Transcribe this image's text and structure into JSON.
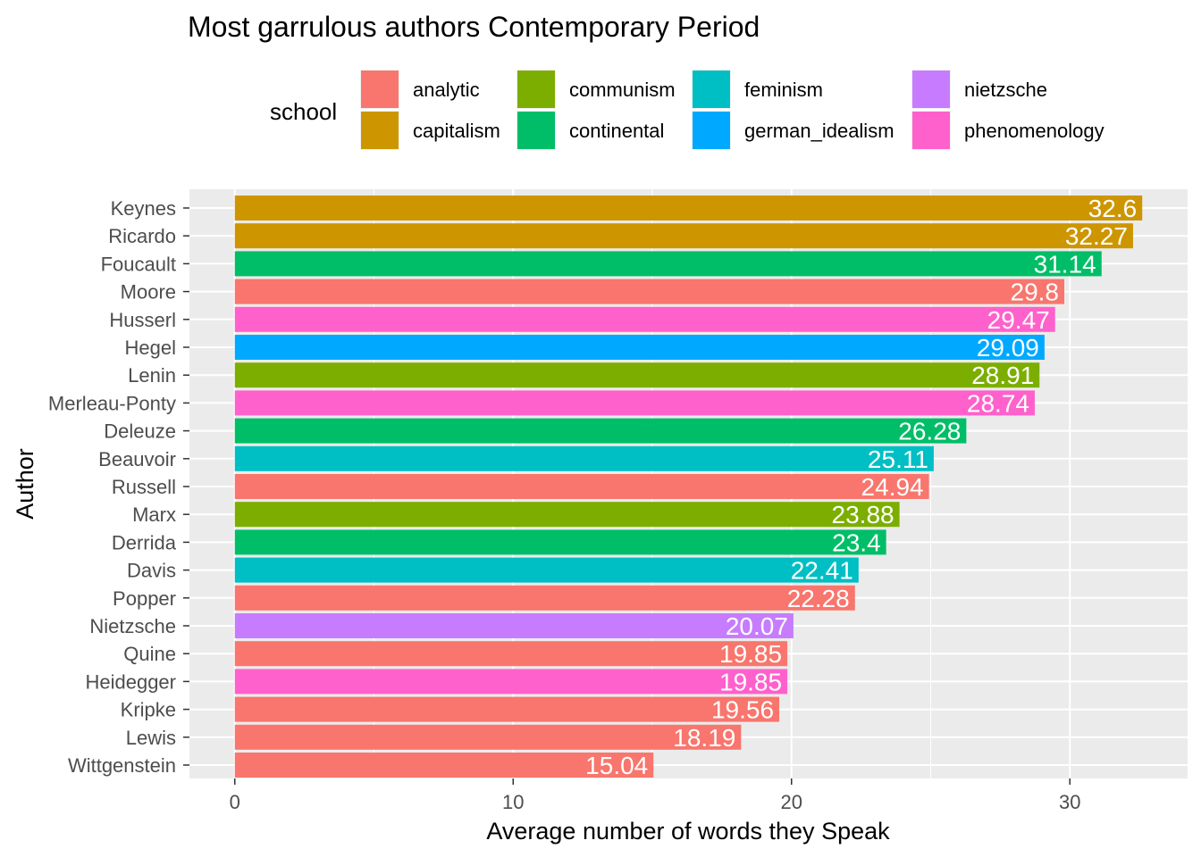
{
  "chart_data": {
    "type": "bar",
    "orientation": "horizontal",
    "title": "Most garrulous authors Contemporary Period",
    "xlabel": "Average number of words they Speak",
    "ylabel": "Author",
    "xlim": [
      -1.63,
      34.23
    ],
    "xticks": [
      0,
      10,
      20,
      30
    ],
    "grid": true,
    "legend": {
      "title": "school",
      "position": "top",
      "entries": [
        {
          "name": "analytic",
          "color": "#F8766D"
        },
        {
          "name": "capitalism",
          "color": "#CD9600"
        },
        {
          "name": "communism",
          "color": "#7CAE00"
        },
        {
          "name": "continental",
          "color": "#00BE67"
        },
        {
          "name": "feminism",
          "color": "#00BFC4"
        },
        {
          "name": "german_idealism",
          "color": "#00A9FF"
        },
        {
          "name": "nietzsche",
          "color": "#C77CFF"
        },
        {
          "name": "phenomenology",
          "color": "#FF61CC"
        }
      ]
    },
    "categories": [
      "Keynes",
      "Ricardo",
      "Foucault",
      "Moore",
      "Husserl",
      "Hegel",
      "Lenin",
      "Merleau-Ponty",
      "Deleuze",
      "Beauvoir",
      "Russell",
      "Marx",
      "Derrida",
      "Davis",
      "Popper",
      "Nietzsche",
      "Quine",
      "Heidegger",
      "Kripke",
      "Lewis",
      "Wittgenstein"
    ],
    "values": [
      32.6,
      32.27,
      31.14,
      29.8,
      29.47,
      29.09,
      28.91,
      28.74,
      26.28,
      25.11,
      24.94,
      23.88,
      23.4,
      22.41,
      22.28,
      20.07,
      19.85,
      19.85,
      19.56,
      18.19,
      15.04
    ],
    "labels": [
      "32.6",
      "32.27",
      "31.14",
      "29.8",
      "29.47",
      "29.09",
      "28.91",
      "28.74",
      "26.28",
      "25.11",
      "24.94",
      "23.88",
      "23.4",
      "22.41",
      "22.28",
      "20.07",
      "19.85",
      "19.85",
      "19.56",
      "18.19",
      "15.04"
    ],
    "schools": [
      "capitalism",
      "capitalism",
      "continental",
      "analytic",
      "phenomenology",
      "german_idealism",
      "communism",
      "phenomenology",
      "continental",
      "feminism",
      "analytic",
      "communism",
      "continental",
      "feminism",
      "analytic",
      "nietzsche",
      "analytic",
      "phenomenology",
      "analytic",
      "analytic",
      "analytic"
    ]
  }
}
